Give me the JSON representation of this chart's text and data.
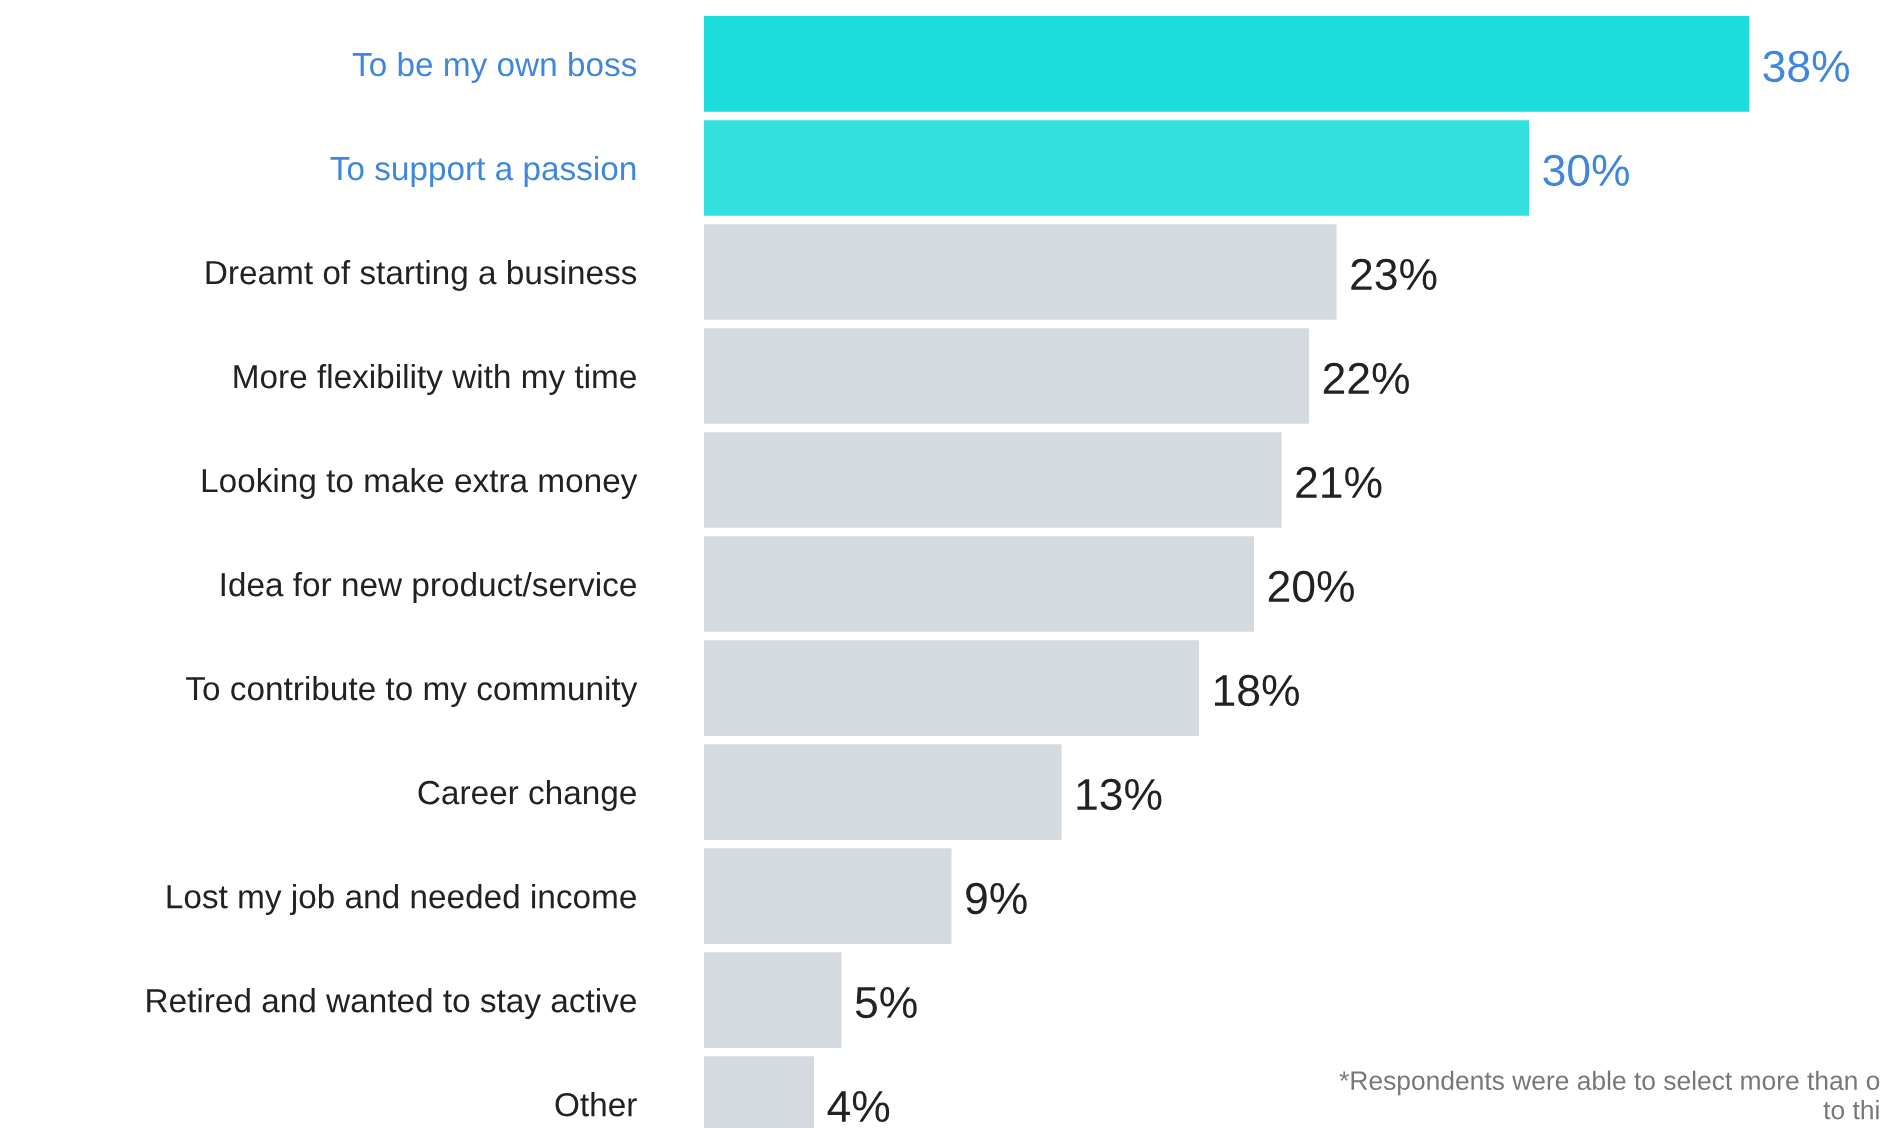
{
  "chart_data": {
    "type": "bar",
    "orientation": "horizontal",
    "categories": [
      "To be my own boss",
      "To support a passion",
      "Dreamt of starting a business",
      "More flexibility with my time",
      "Looking to make extra money",
      "Idea for new product/service",
      "To contribute to my community",
      "Career change",
      "Lost my job and needed income",
      "Retired and wanted to stay active",
      "Other"
    ],
    "values": [
      38,
      30,
      23,
      22,
      21,
      20,
      18,
      13,
      9,
      5,
      4
    ],
    "value_labels": [
      "38%",
      "30%",
      "23%",
      "22%",
      "21%",
      "20%",
      "18%",
      "13%",
      "9%",
      "5%",
      "4%"
    ],
    "colors": [
      "#1cdcdc",
      "#33e0e0",
      "#d4dae0",
      "#d4dae0",
      "#d4dae0",
      "#d4dae0",
      "#d4dae0",
      "#d4dae0",
      "#d4dae0",
      "#d4dae0",
      "#d4dae0"
    ],
    "annotations": [
      "*Respondents were able to select more than o\nto thi"
    ],
    "grid": false,
    "legend": false
  }
}
